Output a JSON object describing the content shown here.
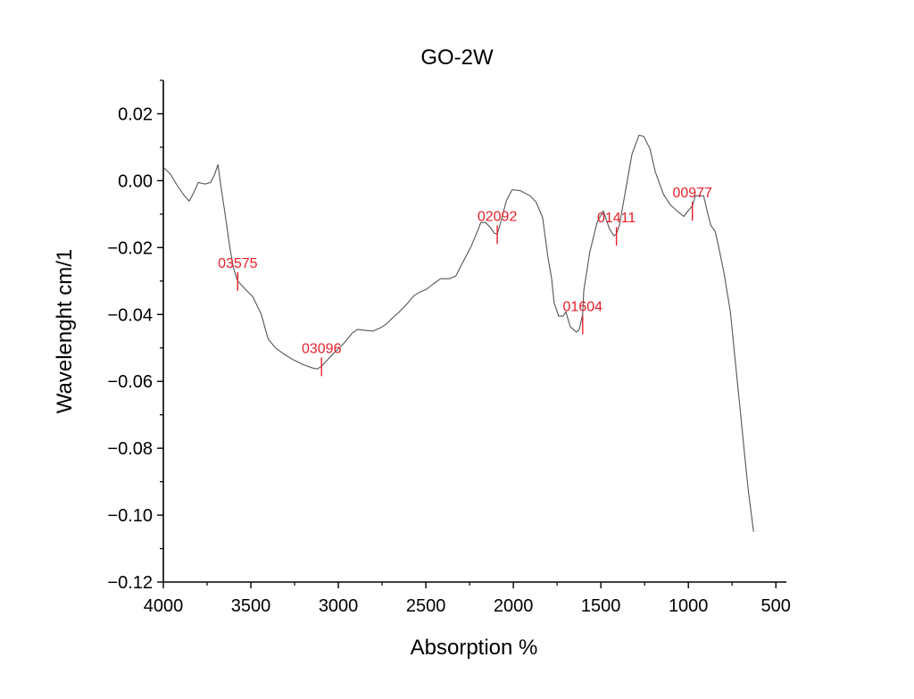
{
  "chart_data": {
    "type": "line",
    "title": "GO-2W",
    "xlabel": "Absorption %",
    "ylabel": "Wavelenght cm/1",
    "xlim": [
      4000,
      440
    ],
    "ylim": [
      -0.12,
      0.03
    ],
    "x_reversed": true,
    "grid": false,
    "legend": "none",
    "x_ticks": [
      4000,
      3500,
      3000,
      2500,
      2000,
      1500,
      1000,
      500
    ],
    "x_tick_labels": [
      "4000",
      "3500",
      "3000",
      "2500",
      "2000",
      "1500",
      "1000",
      "500"
    ],
    "y_ticks": [
      0.02,
      0.0,
      -0.02,
      -0.04,
      -0.06,
      -0.08,
      -0.1,
      -0.12
    ],
    "y_tick_labels": [
      "0.02",
      "0.00",
      "−0.02",
      "−0.04",
      "−0.06",
      "−0.08",
      "−0.10",
      "−0.12"
    ],
    "line_color": "#555555",
    "annotation_color": "#e8202a",
    "series": [
      {
        "name": "GO-2W",
        "x": [
          4000,
          3960,
          3920,
          3880,
          3852,
          3830,
          3800,
          3780,
          3760,
          3730,
          3710,
          3688,
          3670,
          3647,
          3620,
          3600,
          3575,
          3540,
          3489,
          3440,
          3402,
          3360,
          3315,
          3260,
          3200,
          3147,
          3120,
          3096,
          3060,
          3029,
          2990,
          2958,
          2920,
          2891,
          2850,
          2804,
          2760,
          2722,
          2690,
          2651,
          2610,
          2569,
          2530,
          2498,
          2460,
          2416,
          2365,
          2329,
          2290,
          2242,
          2200,
          2186,
          2160,
          2130,
          2109,
          2092,
          2070,
          2040,
          2007,
          1960,
          1905,
          1870,
          1833,
          1802,
          1782,
          1767,
          1741,
          1716,
          1700,
          1675,
          1639,
          1624,
          1604,
          1598,
          1580,
          1563,
          1522,
          1486,
          1451,
          1425,
          1411,
          1394,
          1358,
          1322,
          1282,
          1256,
          1220,
          1189,
          1143,
          1103,
          1066,
          1026,
          1001,
          977,
          960,
          934,
          913,
          889,
          872,
          847,
          831,
          796,
          760,
          735,
          709,
          684,
          658,
          627
        ],
        "y": [
          0.004,
          0.002,
          -0.0015,
          -0.0045,
          -0.0061,
          -0.004,
          -0.0005,
          -0.0008,
          -0.001,
          -0.0005,
          0.0015,
          0.0048,
          -0.002,
          -0.01,
          -0.02,
          -0.026,
          -0.03,
          -0.032,
          -0.0347,
          -0.04,
          -0.0472,
          -0.05,
          -0.0517,
          -0.0535,
          -0.055,
          -0.056,
          -0.0563,
          -0.0555,
          -0.0535,
          -0.0517,
          -0.0498,
          -0.048,
          -0.0455,
          -0.0445,
          -0.0447,
          -0.045,
          -0.044,
          -0.0427,
          -0.041,
          -0.0392,
          -0.037,
          -0.0344,
          -0.0332,
          -0.0325,
          -0.031,
          -0.0293,
          -0.0293,
          -0.0285,
          -0.0245,
          -0.0197,
          -0.0145,
          -0.0125,
          -0.0125,
          -0.014,
          -0.0157,
          -0.016,
          -0.012,
          -0.006,
          -0.0027,
          -0.003,
          -0.0045,
          -0.0064,
          -0.011,
          -0.0232,
          -0.029,
          -0.0365,
          -0.0405,
          -0.0405,
          -0.0392,
          -0.0437,
          -0.0453,
          -0.0445,
          -0.04,
          -0.033,
          -0.027,
          -0.0213,
          -0.0125,
          -0.009,
          -0.0144,
          -0.0165,
          -0.016,
          -0.0133,
          -0.0027,
          0.008,
          0.0136,
          0.0133,
          0.0096,
          0.0027,
          -0.004,
          -0.0072,
          -0.009,
          -0.0107,
          -0.009,
          -0.0075,
          -0.0045,
          -0.0045,
          -0.0045,
          -0.0099,
          -0.0133,
          -0.0152,
          -0.0187,
          -0.0277,
          -0.0392,
          -0.0525,
          -0.0659,
          -0.0792,
          -0.0925,
          -0.105
        ]
      }
    ],
    "annotations": [
      {
        "x": 3575,
        "y": -0.03,
        "label": "03575"
      },
      {
        "x": 3096,
        "y": -0.0555,
        "label": "03096"
      },
      {
        "x": 2092,
        "y": -0.016,
        "label": "02092"
      },
      {
        "x": 1604,
        "y": -0.043,
        "label": "01604"
      },
      {
        "x": 1411,
        "y": -0.0165,
        "label": "01411"
      },
      {
        "x": 977,
        "y": -0.009,
        "label": "00977"
      }
    ]
  }
}
